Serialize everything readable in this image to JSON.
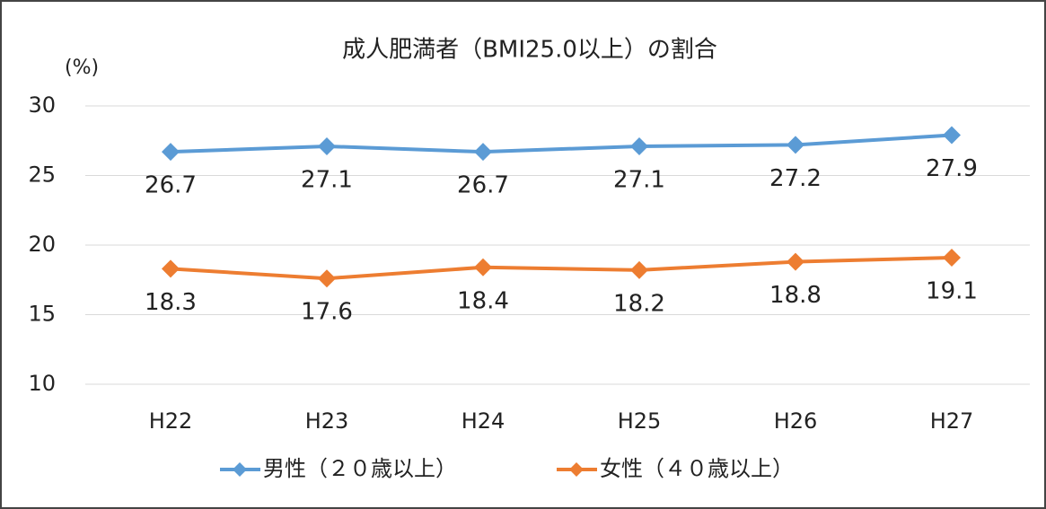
{
  "chart_data": {
    "type": "line",
    "title": "成人肥満者（BMI25.0以上）の割合",
    "y_label": "(%)",
    "categories": [
      "H22",
      "H23",
      "H24",
      "H25",
      "H26",
      "H27"
    ],
    "series": [
      {
        "name": "男性（２０歳以上）",
        "color": "#5b9bd5",
        "values": [
          26.7,
          27.1,
          26.7,
          27.1,
          27.2,
          27.9
        ]
      },
      {
        "name": "女性（４０歳以上）",
        "color": "#ed7d31",
        "values": [
          18.3,
          17.6,
          18.4,
          18.2,
          18.8,
          19.1
        ]
      }
    ],
    "ylim": [
      10,
      30
    ],
    "yticks": [
      10,
      15,
      20,
      25,
      30
    ],
    "grid": true,
    "legend": "bottom"
  }
}
